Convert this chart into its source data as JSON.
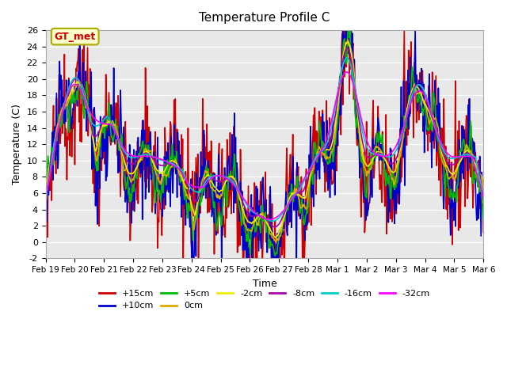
{
  "title": "Temperature Profile C",
  "xlabel": "Time",
  "ylabel": "Temperature (C)",
  "ylim": [
    -2,
    26
  ],
  "yticks": [
    -2,
    0,
    2,
    4,
    6,
    8,
    10,
    12,
    14,
    16,
    18,
    20,
    22,
    24,
    26
  ],
  "date_labels": [
    "Feb 19",
    "Feb 20",
    "Feb 21",
    "Feb 22",
    "Feb 23",
    "Feb 24",
    "Feb 25",
    "Feb 26",
    "Feb 27",
    "Feb 28",
    "Mar 1",
    "Mar 2",
    "Mar 3",
    "Mar 4",
    "Mar 5",
    "Mar 6"
  ],
  "series_labels": [
    "+15cm",
    "+10cm",
    "+5cm",
    "0cm",
    "-2cm",
    "-8cm",
    "-16cm",
    "-32cm"
  ],
  "series_colors": [
    "#cc0000",
    "#0000cc",
    "#00bb00",
    "#ddaa00",
    "#eeee00",
    "#aa00aa",
    "#00cccc",
    "#ff00ff"
  ],
  "background_color": "#e8e8e8",
  "gt_met_label": "GT_met",
  "gt_met_text_color": "#cc0000",
  "gt_met_box_color": "#ffffcc",
  "gt_met_box_edge": "#aaaa00"
}
